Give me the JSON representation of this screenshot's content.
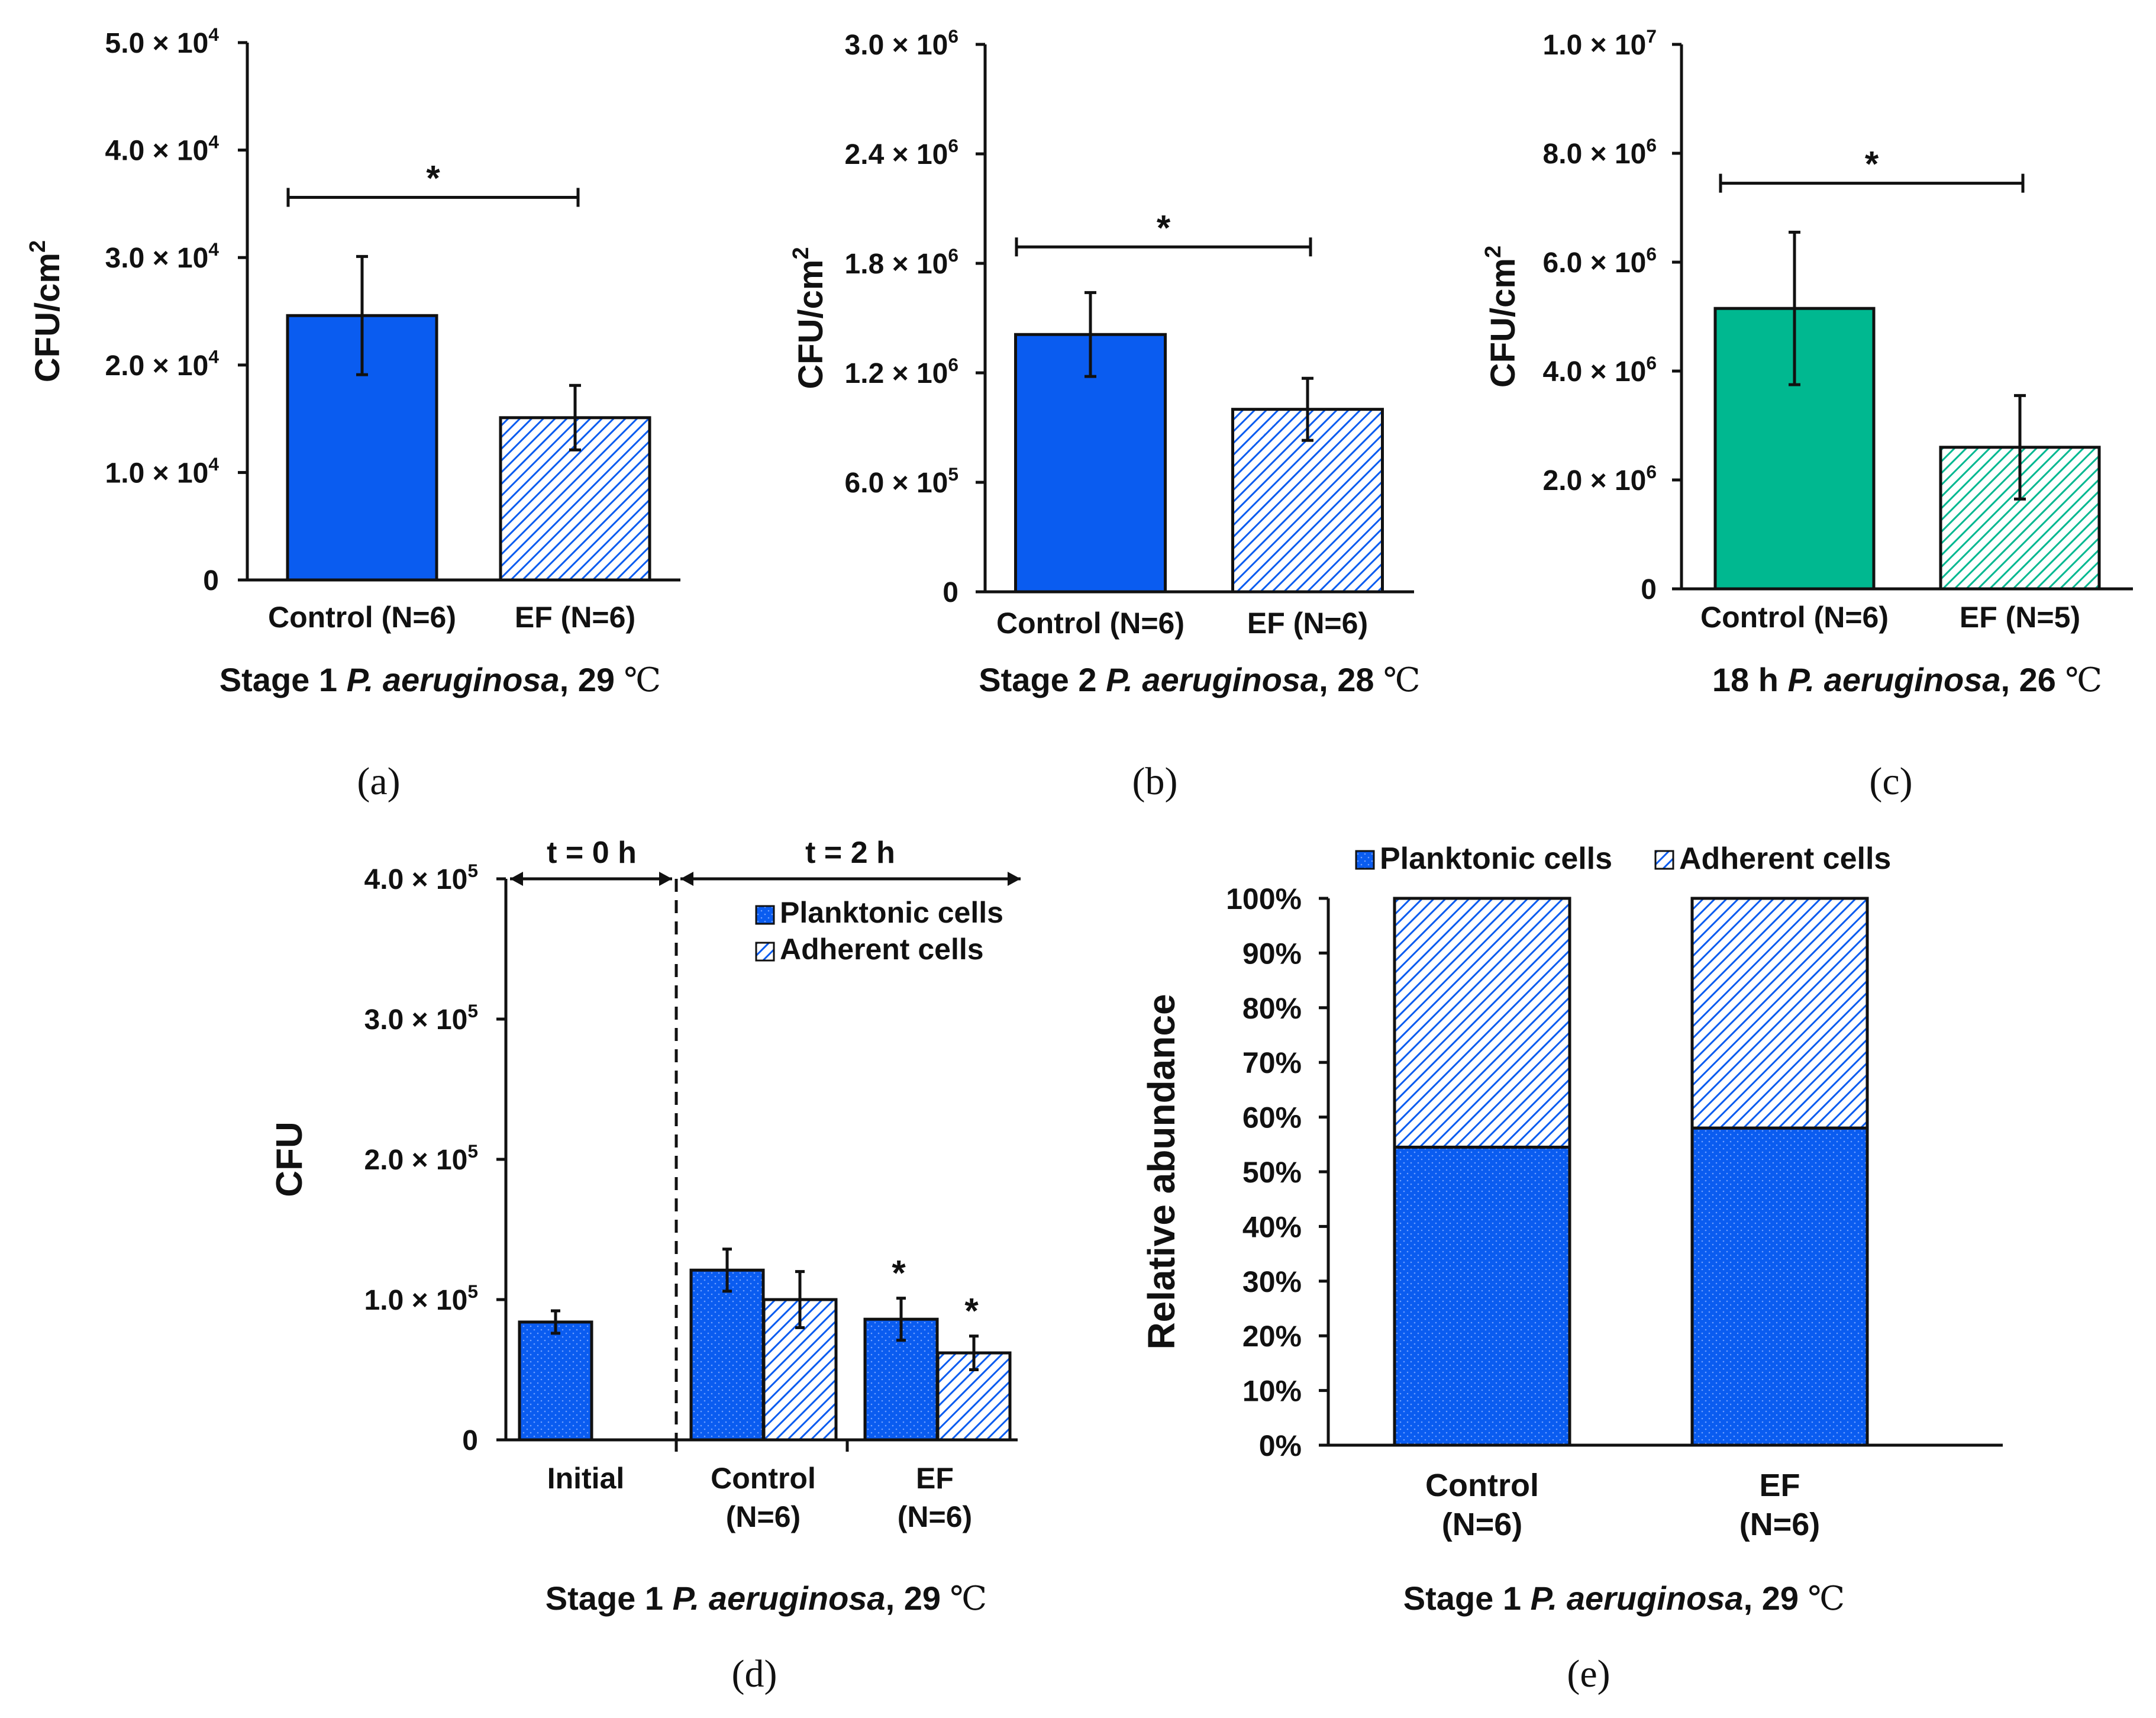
{
  "colors": {
    "blue": "#0a5cf0",
    "green": "#00b890",
    "black": "#111111",
    "hatch_line": "#111111"
  },
  "chart_data": [
    {
      "panel": "(a)",
      "type": "bar",
      "ylabel": "CFU/cm²",
      "ylabel_main": "CFU/cm",
      "ylabel_sup": "2",
      "ylim": [
        0,
        50000
      ],
      "yticks": [
        {
          "value": 0,
          "mant": "0",
          "exp": ""
        },
        {
          "value": 10000,
          "mant": "1.0 × 10",
          "exp": "4"
        },
        {
          "value": 20000,
          "mant": "2.0 × 10",
          "exp": "4"
        },
        {
          "value": 30000,
          "mant": "3.0 × 10",
          "exp": "4"
        },
        {
          "value": 40000,
          "mant": "4.0 × 10",
          "exp": "4"
        },
        {
          "value": 50000,
          "mant": "5.0 × 10",
          "exp": "4"
        }
      ],
      "categories": [
        "Control (N=6)",
        "EF (N=6)"
      ],
      "values": [
        24600,
        15100
      ],
      "errors": [
        5500,
        3000
      ],
      "fills": [
        "solid",
        "hatch"
      ],
      "color": "#0a5cf0",
      "significance": "*",
      "sig_y": 35600,
      "caption": {
        "pre": "Stage 1 ",
        "italic": "P. aeruginosa",
        "post": ", 29 ",
        "unit": "℃"
      }
    },
    {
      "panel": "(b)",
      "type": "bar",
      "ylabel": "CFU/cm²",
      "ylabel_main": "CFU/cm",
      "ylabel_sup": "2",
      "ylim": [
        0,
        3000000
      ],
      "yticks": [
        {
          "value": 0,
          "mant": "0",
          "exp": ""
        },
        {
          "value": 600000,
          "mant": "6.0 × 10",
          "exp": "5"
        },
        {
          "value": 1200000,
          "mant": "1.2 × 10",
          "exp": "6"
        },
        {
          "value": 1800000,
          "mant": "1.8 × 10",
          "exp": "6"
        },
        {
          "value": 2400000,
          "mant": "2.4 × 10",
          "exp": "6"
        },
        {
          "value": 3000000,
          "mant": "3.0 × 10",
          "exp": "6"
        }
      ],
      "categories": [
        "Control (N=6)",
        "EF (N=6)"
      ],
      "values": [
        1410000,
        1000000
      ],
      "errors": [
        230000,
        170000
      ],
      "fills": [
        "solid",
        "hatch"
      ],
      "color": "#0a5cf0",
      "significance": "*",
      "sig_y": 1890000,
      "caption": {
        "pre": "Stage 2 ",
        "italic": "P. aeruginosa",
        "post": ", 28 ",
        "unit": "℃"
      }
    },
    {
      "panel": "(c)",
      "type": "bar",
      "ylabel": "CFU/cm²",
      "ylabel_main": "CFU/cm",
      "ylabel_sup": "2",
      "ylim": [
        0,
        10000000
      ],
      "yticks": [
        {
          "value": 0,
          "mant": "0",
          "exp": ""
        },
        {
          "value": 2000000,
          "mant": "2.0 × 10",
          "exp": "6"
        },
        {
          "value": 4000000,
          "mant": "4.0 × 10",
          "exp": "6"
        },
        {
          "value": 6000000,
          "mant": "6.0 × 10",
          "exp": "6"
        },
        {
          "value": 8000000,
          "mant": "8.0 × 10",
          "exp": "6"
        },
        {
          "value": 10000000,
          "mant": "1.0 × 10",
          "exp": "7"
        }
      ],
      "categories": [
        "Control (N=6)",
        "EF (N=5)"
      ],
      "values": [
        5150000,
        2600000
      ],
      "errors": [
        1400000,
        950000
      ],
      "fills": [
        "solid",
        "hatch"
      ],
      "color": "#00b890",
      "significance": "*",
      "sig_y": 7450000,
      "caption": {
        "pre": "18 h ",
        "italic": "P. aeruginosa",
        "post": ", 26 ",
        "unit": "℃"
      }
    },
    {
      "panel": "(d)",
      "type": "bar",
      "ylabel": "CFU",
      "ylim": [
        0,
        400000
      ],
      "yticks": [
        {
          "value": 0,
          "mant": "0",
          "exp": ""
        },
        {
          "value": 100000,
          "mant": "1.0 × 10",
          "exp": "5"
        },
        {
          "value": 200000,
          "mant": "2.0 × 10",
          "exp": "5"
        },
        {
          "value": 300000,
          "mant": "3.0 × 10",
          "exp": "5"
        },
        {
          "value": 400000,
          "mant": "4.0 × 10",
          "exp": "5"
        }
      ],
      "categories": [
        {
          "line1": "Initial",
          "line2": ""
        },
        {
          "line1": "Control",
          "line2": "(N=6)"
        },
        {
          "line1": "EF",
          "line2": "(N=6)"
        }
      ],
      "series": [
        {
          "name": "Planktonic cells",
          "fill": "dotted",
          "values": [
            84000,
            121000,
            86000
          ],
          "errors": [
            8000,
            15000,
            15000
          ]
        },
        {
          "name": "Adherent cells",
          "fill": "hatch",
          "values": [
            null,
            100000,
            62000
          ],
          "errors": [
            null,
            20000,
            12000
          ]
        }
      ],
      "significance": [
        {
          "category": 2,
          "series": 0,
          "label": "*"
        },
        {
          "category": 2,
          "series": 1,
          "label": "*"
        }
      ],
      "time_labels": [
        "t = 0 h",
        "t = 2 h"
      ],
      "caption": {
        "pre": "Stage 1 ",
        "italic": "P. aeruginosa",
        "post": ", 29 ",
        "unit": "℃"
      }
    },
    {
      "panel": "(e)",
      "type": "stacked-bar",
      "ylabel": "Relative abundance",
      "ylim": [
        0,
        100
      ],
      "yticks": [
        "0%",
        "10%",
        "20%",
        "30%",
        "40%",
        "50%",
        "60%",
        "70%",
        "80%",
        "90%",
        "100%"
      ],
      "categories": [
        {
          "line1": "Control",
          "line2": "(N=6)"
        },
        {
          "line1": "EF",
          "line2": "(N=6)"
        }
      ],
      "series": [
        {
          "name": "Planktonic cells",
          "fill": "dotted",
          "values": [
            54.5,
            58
          ]
        },
        {
          "name": "Adherent cells",
          "fill": "hatch",
          "values": [
            45.5,
            42
          ]
        }
      ],
      "caption": {
        "pre": "Stage 1 ",
        "italic": "P. aeruginosa",
        "post": ", 29 ",
        "unit": "℃"
      }
    }
  ]
}
